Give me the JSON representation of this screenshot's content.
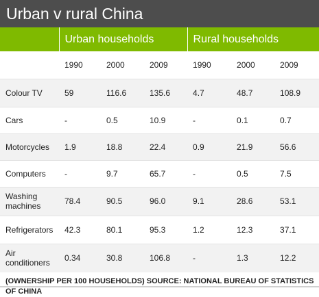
{
  "title": "Urban v rural China",
  "groups": {
    "urban": "Urban households",
    "rural": "Rural households"
  },
  "years": [
    "1990",
    "2000",
    "2009",
    "1990",
    "2000",
    "2009"
  ],
  "rows": [
    {
      "label": "Colour TV",
      "values": [
        "59",
        "116.6",
        "135.6",
        "4.7",
        "48.7",
        "108.9"
      ]
    },
    {
      "label": "Cars",
      "values": [
        "-",
        "0.5",
        "10.9",
        "-",
        "0.1",
        "0.7"
      ]
    },
    {
      "label": "Motorcycles",
      "values": [
        "1.9",
        "18.8",
        "22.4",
        "0.9",
        "21.9",
        "56.6"
      ]
    },
    {
      "label": "Computers",
      "values": [
        "-",
        "9.7",
        "65.7",
        "-",
        "0.5",
        "7.5"
      ]
    },
    {
      "label": "Washing machines",
      "values": [
        "78.4",
        "90.5",
        "96.0",
        "9.1",
        "28.6",
        "53.1"
      ]
    },
    {
      "label": "Refrigerators",
      "values": [
        "42.3",
        "80.1",
        "95.3",
        "1.2",
        "12.3",
        "37.1"
      ]
    },
    {
      "label": "Air conditioners",
      "values": [
        "0.34",
        "30.8",
        "106.8",
        "-",
        "1.3",
        "12.2"
      ]
    }
  ],
  "footer": "(OWNERSHIP PER 100 HOUSEHOLDS) SOURCE: NATIONAL BUREAU OF STATISTICS OF CHINA",
  "colors": {
    "title_bg": "#4d4d4d",
    "header_bg": "#7fba00",
    "row_shade": "#f2f2f2"
  }
}
